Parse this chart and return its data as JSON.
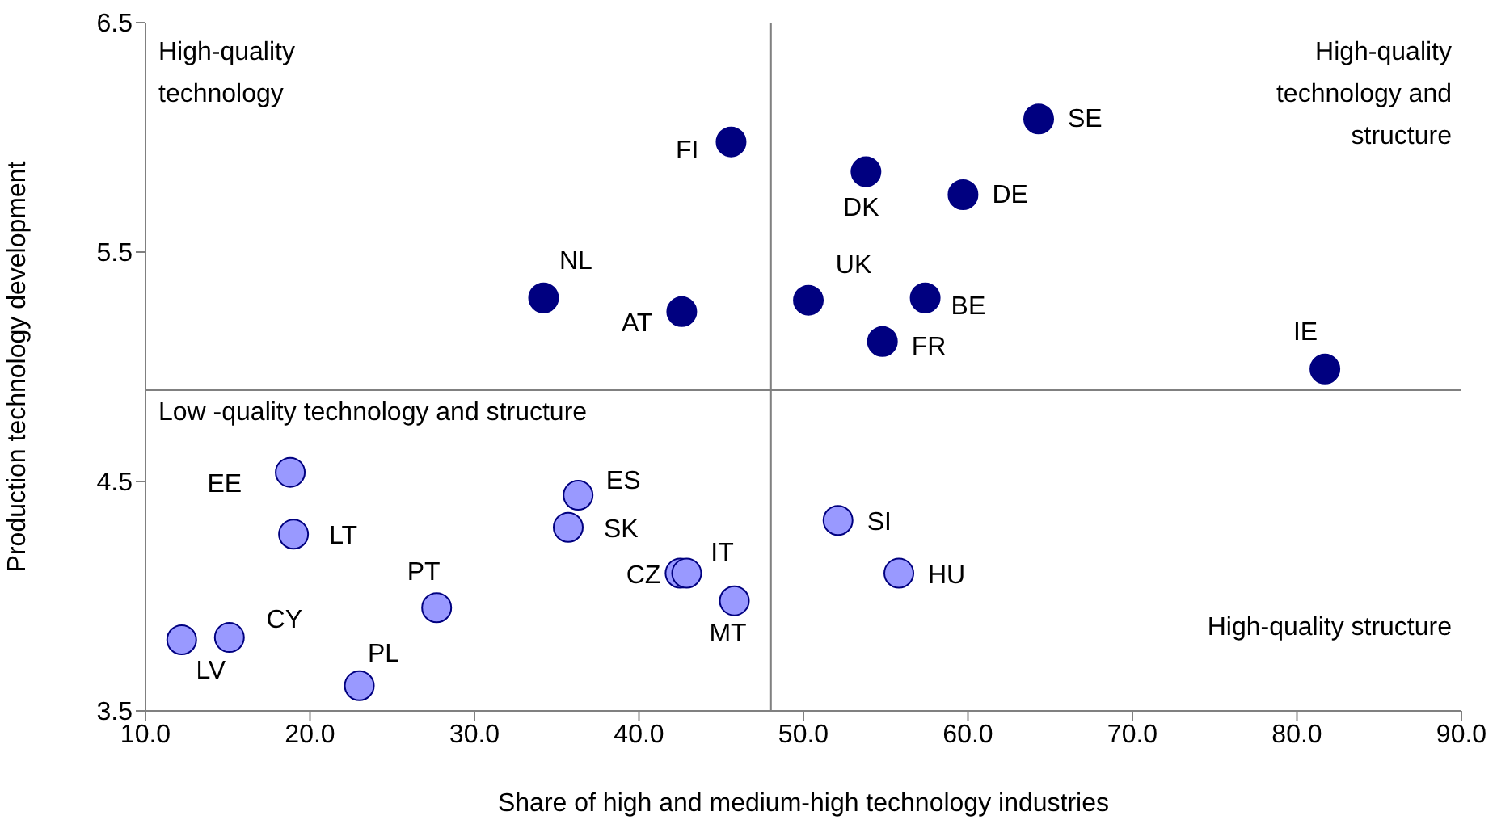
{
  "chart_data": {
    "type": "scatter",
    "xlabel": "Share of high and medium-high technology industries",
    "ylabel": "Production technology development",
    "xlim": [
      10,
      90
    ],
    "xticks": [
      {
        "value": 10,
        "label": "10.0"
      },
      {
        "value": 20,
        "label": "20.0"
      },
      {
        "value": 30,
        "label": "30.0"
      },
      {
        "value": 40,
        "label": "40.0"
      },
      {
        "value": 50,
        "label": "50.0"
      },
      {
        "value": 60,
        "label": "60.0"
      },
      {
        "value": 70,
        "label": "70.0"
      },
      {
        "value": 80,
        "label": "80.0"
      },
      {
        "value": 90,
        "label": "90.0"
      }
    ],
    "ylim": [
      3.5,
      6.5
    ],
    "yticks": [
      3.5,
      4.5,
      5.5,
      6.5
    ],
    "grid": false,
    "marker": "circle",
    "ref_lines": [
      {
        "axis": "x",
        "value": 48,
        "color": "#808080"
      },
      {
        "axis": "y",
        "value": 4.9,
        "color": "#808080"
      }
    ],
    "annotations": [
      "High-quality technology",
      "High-quality technology and structure",
      "Low -quality technology and structure",
      "High-quality structure"
    ],
    "series": [
      {
        "name": "FI",
        "color": "#000080",
        "x": [
          45.6
        ],
        "values": [
          5.98
        ]
      },
      {
        "name": "SE",
        "color": "#000080",
        "x": [
          64.3
        ],
        "values": [
          6.08
        ]
      },
      {
        "name": "DK",
        "color": "#000080",
        "x": [
          53.8
        ],
        "values": [
          5.85
        ]
      },
      {
        "name": "DE",
        "color": "#000080",
        "x": [
          59.7
        ],
        "values": [
          5.75
        ]
      },
      {
        "name": "NL",
        "color": "#000080",
        "x": [
          34.2
        ],
        "values": [
          5.3
        ]
      },
      {
        "name": "AT",
        "color": "#000080",
        "x": [
          42.6
        ],
        "values": [
          5.24
        ]
      },
      {
        "name": "UK",
        "color": "#000080",
        "x": [
          50.3
        ],
        "values": [
          5.29
        ]
      },
      {
        "name": "BE",
        "color": "#000080",
        "x": [
          57.4
        ],
        "values": [
          5.3
        ]
      },
      {
        "name": "FR",
        "color": "#000080",
        "x": [
          54.8
        ],
        "values": [
          5.11
        ]
      },
      {
        "name": "IE",
        "color": "#000080",
        "x": [
          81.7
        ],
        "values": [
          4.99
        ]
      },
      {
        "name": "EE",
        "color": "#9999ff",
        "x": [
          18.8
        ],
        "values": [
          4.54
        ]
      },
      {
        "name": "LT",
        "color": "#9999ff",
        "x": [
          19.0
        ],
        "values": [
          4.27
        ]
      },
      {
        "name": "ES",
        "color": "#9999ff",
        "x": [
          36.3
        ],
        "values": [
          4.44
        ]
      },
      {
        "name": "SK",
        "color": "#9999ff",
        "x": [
          35.7
        ],
        "values": [
          4.3
        ]
      },
      {
        "name": "CZ",
        "color": "#9999ff",
        "x": [
          42.5
        ],
        "values": [
          4.1
        ]
      },
      {
        "name": "IT",
        "color": "#9999ff",
        "x": [
          42.9
        ],
        "values": [
          4.1
        ]
      },
      {
        "name": "MT",
        "color": "#9999ff",
        "x": [
          45.8
        ],
        "values": [
          3.98
        ]
      },
      {
        "name": "SI",
        "color": "#9999ff",
        "x": [
          52.1
        ],
        "values": [
          4.33
        ]
      },
      {
        "name": "HU",
        "color": "#9999ff",
        "x": [
          55.8
        ],
        "values": [
          4.1
        ]
      },
      {
        "name": "PT",
        "color": "#9999ff",
        "x": [
          27.7
        ],
        "values": [
          3.95
        ]
      },
      {
        "name": "CY",
        "color": "#9999ff",
        "x": [
          15.1
        ],
        "values": [
          3.82
        ]
      },
      {
        "name": "LV",
        "color": "#9999ff",
        "x": [
          12.2
        ],
        "values": [
          3.81
        ]
      },
      {
        "name": "PL",
        "color": "#9999ff",
        "x": [
          23.0
        ],
        "values": [
          3.61
        ]
      }
    ]
  }
}
